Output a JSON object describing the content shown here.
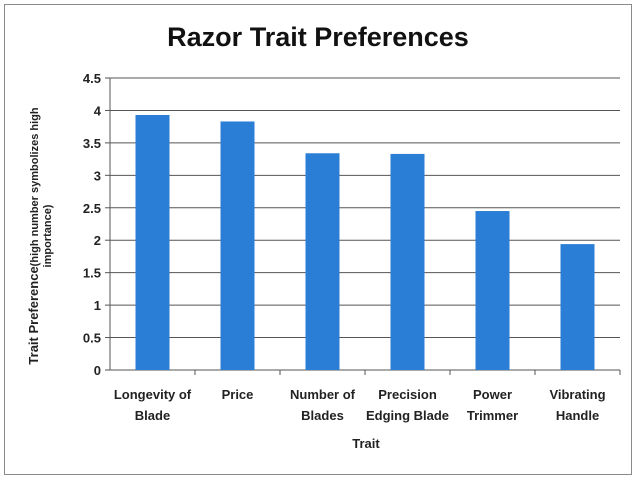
{
  "chart_data": {
    "type": "bar",
    "title": "Razor Trait Preferences",
    "xlabel": "Trait",
    "ylabel_main": "Trait Preference",
    "ylabel_sub_line1": "(high number symbolizes high",
    "ylabel_sub_line2": "importance)",
    "categories": [
      [
        "Longevity of",
        "Blade"
      ],
      [
        "Price"
      ],
      [
        "Number of",
        "Blades"
      ],
      [
        "Precision",
        "Edging Blade"
      ],
      [
        "Power",
        "Trimmer"
      ],
      [
        "Vibrating",
        "Handle"
      ]
    ],
    "values": [
      3.93,
      3.83,
      3.34,
      3.33,
      2.45,
      1.94
    ],
    "ylim": [
      0,
      4.5
    ],
    "yticks": [
      "0",
      "0.5",
      "1",
      "1.5",
      "2",
      "2.5",
      "3",
      "3.5",
      "4",
      "4.5"
    ],
    "grid": true,
    "colors": {
      "bar": "#2b7ed6",
      "grid": "#555555",
      "axis": "#555555"
    }
  }
}
